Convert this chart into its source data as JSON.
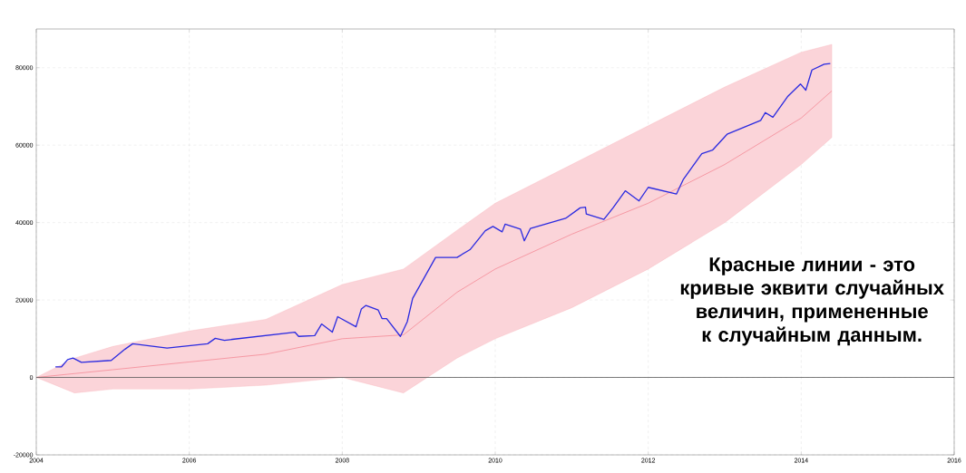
{
  "chart_data": {
    "type": "line",
    "x": [
      2004,
      2004.5,
      2005,
      2006,
      2007,
      2008,
      2008.8,
      2009.5,
      2010,
      2011,
      2012,
      2013,
      2014,
      2014.4
    ],
    "series": [
      {
        "color": "#f2707f",
        "values": [
          0,
          1000,
          2000,
          4000,
          6000,
          10000,
          11000,
          22000,
          28000,
          37000,
          45000,
          55000,
          67000,
          74000
        ],
        "lower": [
          0,
          -4000,
          -3000,
          -3000,
          -2000,
          0,
          -4000,
          5000,
          10000,
          18000,
          28000,
          40000,
          55000,
          62000
        ],
        "upper": [
          0,
          5000,
          8000,
          12000,
          15000,
          24000,
          28000,
          38000,
          45000,
          55000,
          65000,
          75000,
          84000,
          86000
        ]
      },
      {
        "color": "#2a2ae0",
        "x": [
          2004.25,
          2004.33,
          2004.41,
          2004.48,
          2004.59,
          2004.98,
          2005.16,
          2005.26,
          2005.71,
          2006.24,
          2006.34,
          2006.46,
          2007.38,
          2007.43,
          2007.64,
          2007.73,
          2007.87,
          2007.94,
          2008.18,
          2008.25,
          2008.31,
          2008.47,
          2008.52,
          2008.58,
          2008.76,
          2008.85,
          2008.92,
          2009.22,
          2009.5,
          2009.67,
          2009.87,
          2009.97,
          2010.09,
          2010.13,
          2010.33,
          2010.38,
          2010.46,
          2010.92,
          2011.11,
          2011.18,
          2011.19,
          2011.42,
          2011.54,
          2011.7,
          2011.88,
          2012.0,
          2012.37,
          2012.46,
          2012.7,
          2012.84,
          2013.03,
          2013.47,
          2013.53,
          2013.63,
          2013.82,
          2013.99,
          2014.06,
          2014.14,
          2014.3,
          2014.38
        ],
        "values": [
          2750,
          2750,
          4600,
          5000,
          3900,
          4400,
          7300,
          8700,
          7600,
          8700,
          10100,
          9600,
          11700,
          10600,
          10800,
          13800,
          11700,
          15700,
          13100,
          17700,
          18600,
          17400,
          15200,
          15200,
          10600,
          14400,
          20400,
          31000,
          31000,
          33000,
          37900,
          39000,
          37600,
          39600,
          38300,
          35300,
          38500,
          41100,
          43800,
          44000,
          42200,
          40800,
          43800,
          48200,
          45600,
          49100,
          47400,
          51200,
          57800,
          58700,
          62800,
          66400,
          68400,
          67200,
          72500,
          75800,
          74200,
          79400,
          80900,
          81100
        ]
      }
    ],
    "xlim": [
      2004,
      2016
    ],
    "xticks": [
      2004,
      2006,
      2008,
      2010,
      2012,
      2014,
      2016
    ],
    "ylim": [
      -20000,
      90000
    ],
    "yticks": [
      -20000,
      0,
      20000,
      40000,
      60000,
      80000
    ],
    "grid": true,
    "line_style": "solid",
    "marker": "none",
    "ref_lines": [
      {
        "axis": "y",
        "value": 0,
        "color": "#555555"
      }
    ],
    "annotations": [
      "Красные линии - это кривые эквити случайных величин, примененные к случайным данным."
    ]
  }
}
